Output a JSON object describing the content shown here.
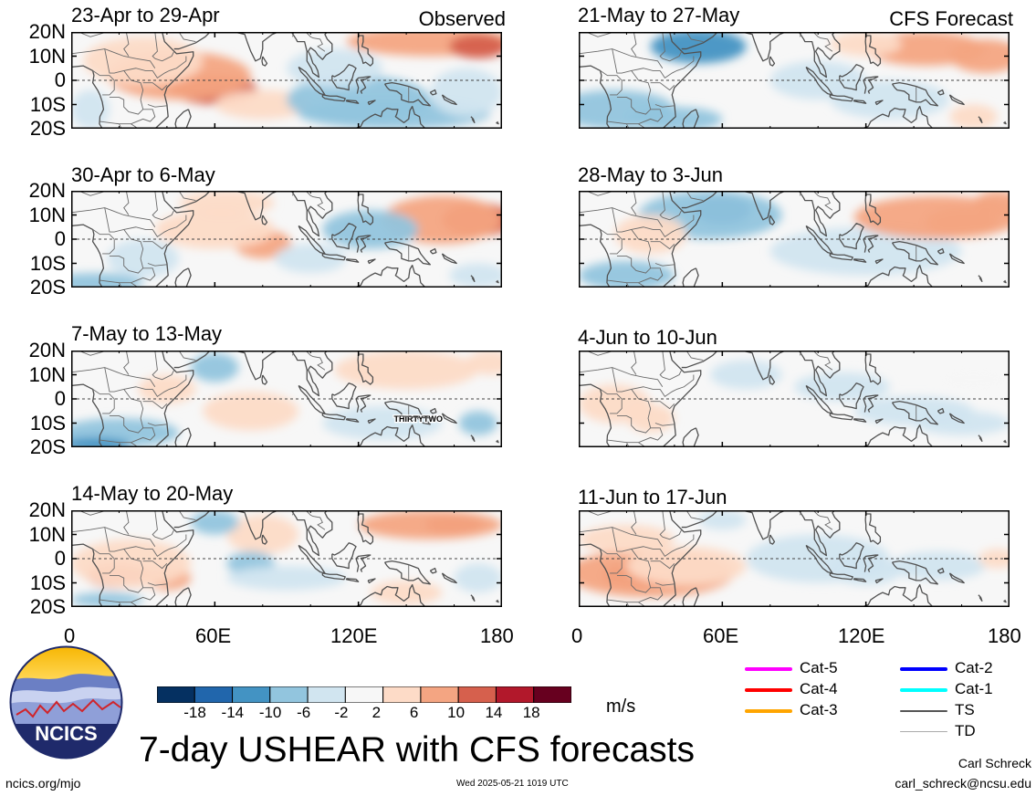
{
  "header_tags": {
    "observed": "Observed",
    "forecast": "CFS Forecast"
  },
  "lat_labels": [
    "20N",
    "10N",
    "0",
    "10S",
    "20S"
  ],
  "lon_labels": [
    "0",
    "60E",
    "120E",
    "180"
  ],
  "storm_label": "THIRTYTWO",
  "panels": [
    {
      "title": "23-Apr to 29-Apr",
      "kind": "observed",
      "blobs": [
        {
          "lon": 60,
          "lat": -4,
          "rx": 18,
          "ry": 6,
          "v": 13
        },
        {
          "lon": 45,
          "lat": 2,
          "rx": 30,
          "ry": 10,
          "v": 7
        },
        {
          "lon": 30,
          "lat": 8,
          "rx": 25,
          "ry": 10,
          "v": 5
        },
        {
          "lon": 150,
          "lat": 16,
          "rx": 35,
          "ry": 6,
          "v": 9
        },
        {
          "lon": 170,
          "lat": 14,
          "rx": 12,
          "ry": 5,
          "v": 11
        },
        {
          "lon": 80,
          "lat": -10,
          "rx": 20,
          "ry": 6,
          "v": 5
        },
        {
          "lon": 120,
          "lat": -8,
          "rx": 30,
          "ry": 10,
          "v": -9
        },
        {
          "lon": 135,
          "lat": -14,
          "rx": 40,
          "ry": 6,
          "v": -7
        },
        {
          "lon": 110,
          "lat": 5,
          "rx": 20,
          "ry": 8,
          "v": -5
        },
        {
          "lon": 165,
          "lat": -5,
          "rx": 15,
          "ry": 10,
          "v": -4
        },
        {
          "lon": 8,
          "lat": -12,
          "rx": 8,
          "ry": 8,
          "v": -4
        }
      ]
    },
    {
      "title": "21-May to 27-May",
      "kind": "forecast",
      "blobs": [
        {
          "lon": 50,
          "lat": 14,
          "rx": 20,
          "ry": 7,
          "v": -10
        },
        {
          "lon": 15,
          "lat": -12,
          "rx": 25,
          "ry": 8,
          "v": -9
        },
        {
          "lon": 40,
          "lat": -16,
          "rx": 20,
          "ry": 5,
          "v": -7
        },
        {
          "lon": 130,
          "lat": -8,
          "rx": 25,
          "ry": 8,
          "v": -5
        },
        {
          "lon": 100,
          "lat": 0,
          "rx": 20,
          "ry": 8,
          "v": -3
        },
        {
          "lon": 145,
          "lat": 13,
          "rx": 25,
          "ry": 7,
          "v": 8
        },
        {
          "lon": 170,
          "lat": 10,
          "rx": 15,
          "ry": 7,
          "v": 7
        },
        {
          "lon": 120,
          "lat": 15,
          "rx": 15,
          "ry": 5,
          "v": 4
        },
        {
          "lon": 165,
          "lat": -15,
          "rx": 10,
          "ry": 5,
          "v": 3
        }
      ]
    },
    {
      "title": "30-Apr to 6-May",
      "kind": "observed",
      "blobs": [
        {
          "lon": 170,
          "lat": 8,
          "rx": 15,
          "ry": 7,
          "v": 14
        },
        {
          "lon": 155,
          "lat": 8,
          "rx": 25,
          "ry": 10,
          "v": 7
        },
        {
          "lon": 80,
          "lat": -2,
          "rx": 12,
          "ry": 6,
          "v": 7
        },
        {
          "lon": 60,
          "lat": 4,
          "rx": 25,
          "ry": 8,
          "v": 5
        },
        {
          "lon": 65,
          "lat": 15,
          "rx": 20,
          "ry": 5,
          "v": 4
        },
        {
          "lon": 125,
          "lat": 4,
          "rx": 20,
          "ry": 8,
          "v": -6
        },
        {
          "lon": 100,
          "lat": -8,
          "rx": 15,
          "ry": 6,
          "v": -3
        },
        {
          "lon": 10,
          "lat": -18,
          "rx": 20,
          "ry": 4,
          "v": -9
        },
        {
          "lon": 30,
          "lat": -8,
          "rx": 15,
          "ry": 8,
          "v": -3
        },
        {
          "lon": 170,
          "lat": -15,
          "rx": 12,
          "ry": 5,
          "v": -3
        }
      ]
    },
    {
      "title": "28-May to 3-Jun",
      "kind": "forecast",
      "blobs": [
        {
          "lon": 60,
          "lat": 12,
          "rx": 12,
          "ry": 6,
          "v": -15
        },
        {
          "lon": 55,
          "lat": 10,
          "rx": 30,
          "ry": 10,
          "v": -7
        },
        {
          "lon": 20,
          "lat": -15,
          "rx": 20,
          "ry": 6,
          "v": -9
        },
        {
          "lon": 120,
          "lat": -5,
          "rx": 40,
          "ry": 10,
          "v": -4
        },
        {
          "lon": 150,
          "lat": 9,
          "rx": 35,
          "ry": 9,
          "v": 7
        },
        {
          "lon": 160,
          "lat": 7,
          "rx": 15,
          "ry": 6,
          "v": 10
        },
        {
          "lon": 175,
          "lat": 15,
          "rx": 10,
          "ry": 5,
          "v": 8
        },
        {
          "lon": 30,
          "lat": 2,
          "rx": 15,
          "ry": 8,
          "v": 3
        }
      ]
    },
    {
      "title": "7-May to 13-May",
      "kind": "observed",
      "blobs": [
        {
          "lon": 60,
          "lat": 13,
          "rx": 10,
          "ry": 6,
          "v": -7
        },
        {
          "lon": 20,
          "lat": -14,
          "rx": 25,
          "ry": 6,
          "v": -7
        },
        {
          "lon": 10,
          "lat": -19,
          "rx": 15,
          "ry": 3,
          "v": -11
        },
        {
          "lon": 130,
          "lat": -10,
          "rx": 25,
          "ry": 7,
          "v": -5
        },
        {
          "lon": 170,
          "lat": -10,
          "rx": 8,
          "ry": 5,
          "v": -8
        },
        {
          "lon": 140,
          "lat": 12,
          "rx": 30,
          "ry": 8,
          "v": 3
        },
        {
          "lon": 175,
          "lat": 15,
          "rx": 10,
          "ry": 5,
          "v": 6
        },
        {
          "lon": 75,
          "lat": -5,
          "rx": 20,
          "ry": 8,
          "v": 3
        },
        {
          "lon": 40,
          "lat": 4,
          "rx": 12,
          "ry": 6,
          "v": 3
        }
      ]
    },
    {
      "title": "4-Jun to 10-Jun",
      "kind": "forecast",
      "blobs": [
        {
          "lon": 15,
          "lat": -2,
          "rx": 15,
          "ry": 8,
          "v": 5
        },
        {
          "lon": 30,
          "lat": -8,
          "rx": 10,
          "ry": 6,
          "v": 3
        },
        {
          "lon": 110,
          "lat": 5,
          "rx": 20,
          "ry": 6,
          "v": -4
        },
        {
          "lon": 140,
          "lat": -5,
          "rx": 25,
          "ry": 6,
          "v": -3
        },
        {
          "lon": 160,
          "lat": -10,
          "rx": 20,
          "ry": 5,
          "v": -4
        },
        {
          "lon": 165,
          "lat": 8,
          "rx": 15,
          "ry": 5,
          "v": 2
        },
        {
          "lon": 70,
          "lat": 10,
          "rx": 15,
          "ry": 6,
          "v": -2
        }
      ]
    },
    {
      "title": "14-May to 20-May",
      "kind": "observed",
      "blobs": [
        {
          "lon": 20,
          "lat": -7,
          "rx": 14,
          "ry": 5,
          "v": 12
        },
        {
          "lon": 40,
          "lat": -8,
          "rx": 10,
          "ry": 5,
          "v": 10
        },
        {
          "lon": 25,
          "lat": -2,
          "rx": 25,
          "ry": 10,
          "v": 6
        },
        {
          "lon": 160,
          "lat": 14,
          "rx": 12,
          "ry": 4,
          "v": 12
        },
        {
          "lon": 150,
          "lat": 14,
          "rx": 30,
          "ry": 6,
          "v": 7
        },
        {
          "lon": 80,
          "lat": 10,
          "rx": 15,
          "ry": 8,
          "v": 3
        },
        {
          "lon": 60,
          "lat": 15,
          "rx": 10,
          "ry": 5,
          "v": -9
        },
        {
          "lon": 75,
          "lat": -2,
          "rx": 10,
          "ry": 5,
          "v": -7
        },
        {
          "lon": 90,
          "lat": -8,
          "rx": 25,
          "ry": 5,
          "v": -3
        },
        {
          "lon": 15,
          "lat": -17,
          "rx": 15,
          "ry": 3,
          "v": -7
        },
        {
          "lon": 140,
          "lat": -14,
          "rx": 15,
          "ry": 5,
          "v": 5
        },
        {
          "lon": 170,
          "lat": -8,
          "rx": 10,
          "ry": 6,
          "v": -4
        }
      ]
    },
    {
      "title": "11-Jun to 17-Jun",
      "kind": "forecast",
      "blobs": [
        {
          "lon": 25,
          "lat": -7,
          "rx": 15,
          "ry": 5,
          "v": 14
        },
        {
          "lon": 30,
          "lat": -6,
          "rx": 35,
          "ry": 10,
          "v": 8
        },
        {
          "lon": 45,
          "lat": -3,
          "rx": 25,
          "ry": 8,
          "v": 5
        },
        {
          "lon": 20,
          "lat": 8,
          "rx": 20,
          "ry": 6,
          "v": 3
        },
        {
          "lon": 100,
          "lat": 0,
          "rx": 30,
          "ry": 10,
          "v": -3
        },
        {
          "lon": 120,
          "lat": -5,
          "rx": 15,
          "ry": 6,
          "v": -4
        },
        {
          "lon": 150,
          "lat": -3,
          "rx": 20,
          "ry": 6,
          "v": -3
        },
        {
          "lon": 175,
          "lat": 0,
          "rx": 8,
          "ry": 4,
          "v": 3
        },
        {
          "lon": 60,
          "lat": 16,
          "rx": 10,
          "ry": 4,
          "v": -2
        }
      ]
    }
  ],
  "colorbar": {
    "levels": [
      "-18",
      "-14",
      "-10",
      "-6",
      "-2",
      "2",
      "6",
      "10",
      "14",
      "18"
    ],
    "colors": [
      "#053061",
      "#2166ac",
      "#4393c3",
      "#92c5de",
      "#d1e5f0",
      "#f7f7f7",
      "#fddbc7",
      "#f4a582",
      "#d6604d",
      "#b2182b",
      "#67001f"
    ],
    "units": "m/s"
  },
  "legend": [
    {
      "label": "Cat-5",
      "color": "#ff00ff"
    },
    {
      "label": "Cat-4",
      "color": "#ff0000"
    },
    {
      "label": "Cat-3",
      "color": "#ffa500"
    },
    {
      "label": "Cat-2",
      "color": "#0000ff"
    },
    {
      "label": "Cat-1",
      "color": "#00ffff"
    },
    {
      "label": "TS",
      "color": "#555555"
    },
    {
      "label": "TD",
      "color": "#aaaaaa"
    }
  ],
  "footer": {
    "main_title": "7-day USHEAR with CFS forecasts",
    "site": "ncics.org/mjo",
    "timestamp": "Wed 2025-05-21 1019 UTC",
    "author": "Carl Schreck",
    "email": "carl_schreck@ncsu.edu",
    "logo_text": "NCICS"
  }
}
